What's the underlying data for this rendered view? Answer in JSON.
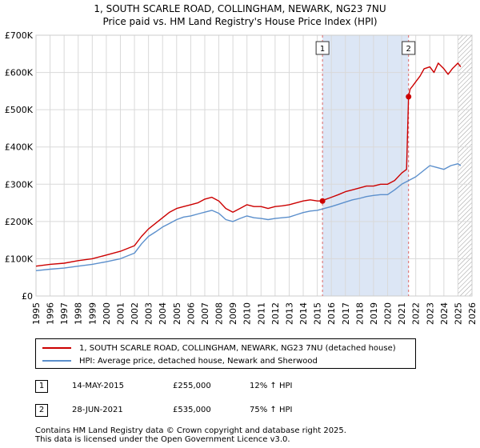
{
  "title_line1": "1, SOUTH SCARLE ROAD, COLLINGHAM, NEWARK, NG23 7NU",
  "title_line2": "Price paid vs. HM Land Registry's House Price Index (HPI)",
  "chart_data": {
    "type": "line",
    "title": "Price paid vs. HM Land Registry's House Price Index (HPI)",
    "xlabel": "",
    "ylabel": "",
    "xlim": [
      1995,
      2026
    ],
    "ylim": [
      0,
      700000
    ],
    "y_ticks": [
      0,
      100000,
      200000,
      300000,
      400000,
      500000,
      600000,
      700000
    ],
    "y_tick_labels": [
      "£0",
      "£100K",
      "£200K",
      "£300K",
      "£400K",
      "£500K",
      "£600K",
      "£700K"
    ],
    "x_ticks": [
      "1995",
      "1996",
      "1997",
      "1998",
      "1999",
      "2000",
      "2001",
      "2002",
      "2003",
      "2004",
      "2005",
      "2006",
      "2007",
      "2008",
      "2009",
      "2010",
      "2011",
      "2012",
      "2013",
      "2014",
      "2015",
      "2016",
      "2017",
      "2018",
      "2019",
      "2020",
      "2021",
      "2022",
      "2023",
      "2024",
      "2025",
      "2026"
    ],
    "grid": true,
    "shaded_region": {
      "from": 2015.37,
      "to": 2021.49,
      "color": "#dce6f5"
    },
    "hatched_region": {
      "from": 2025.0,
      "to": 2026.0
    },
    "series": [
      {
        "name": "1, SOUTH SCARLE ROAD, COLLINGHAM, NEWARK, NG23 7NU (detached house)",
        "color": "#cc0000",
        "x": [
          1995.0,
          1996.0,
          1997.0,
          1998.0,
          1999.0,
          2000.0,
          2001.0,
          2002.0,
          2002.5,
          2003.0,
          2003.5,
          2004.0,
          2004.5,
          2005.0,
          2005.5,
          2006.0,
          2006.5,
          2007.0,
          2007.5,
          2008.0,
          2008.5,
          2009.0,
          2009.5,
          2010.0,
          2010.5,
          2011.0,
          2011.5,
          2012.0,
          2012.5,
          2013.0,
          2013.5,
          2014.0,
          2014.5,
          2015.0,
          2015.37,
          2015.5,
          2016.0,
          2016.5,
          2017.0,
          2017.5,
          2018.0,
          2018.5,
          2019.0,
          2019.5,
          2020.0,
          2020.5,
          2021.0,
          2021.35,
          2021.49,
          2021.6,
          2021.8,
          2022.0,
          2022.3,
          2022.6,
          2023.0,
          2023.3,
          2023.6,
          2024.0,
          2024.3,
          2024.6,
          2025.0,
          2025.2
        ],
        "values": [
          80000,
          85000,
          88000,
          95000,
          100000,
          110000,
          120000,
          135000,
          160000,
          180000,
          195000,
          210000,
          225000,
          235000,
          240000,
          245000,
          250000,
          260000,
          265000,
          255000,
          235000,
          225000,
          235000,
          245000,
          240000,
          240000,
          235000,
          240000,
          242000,
          245000,
          250000,
          255000,
          258000,
          255000,
          255000,
          258000,
          265000,
          272000,
          280000,
          285000,
          290000,
          295000,
          295000,
          300000,
          300000,
          310000,
          330000,
          340000,
          535000,
          555000,
          565000,
          575000,
          590000,
          610000,
          615000,
          600000,
          625000,
          610000,
          595000,
          610000,
          625000,
          615000
        ]
      },
      {
        "name": "HPI: Average price, detached house, Newark and Sherwood",
        "color": "#5b8fcc",
        "x": [
          1995.0,
          1996.0,
          1997.0,
          1998.0,
          1999.0,
          2000.0,
          2001.0,
          2002.0,
          2002.5,
          2003.0,
          2003.5,
          2004.0,
          2004.5,
          2005.0,
          2005.5,
          2006.0,
          2006.5,
          2007.0,
          2007.5,
          2008.0,
          2008.5,
          2009.0,
          2009.5,
          2010.0,
          2010.5,
          2011.0,
          2011.5,
          2012.0,
          2012.5,
          2013.0,
          2013.5,
          2014.0,
          2014.5,
          2015.0,
          2015.5,
          2016.0,
          2016.5,
          2017.0,
          2017.5,
          2018.0,
          2018.5,
          2019.0,
          2019.5,
          2020.0,
          2020.5,
          2021.0,
          2021.5,
          2022.0,
          2022.5,
          2023.0,
          2023.5,
          2024.0,
          2024.5,
          2025.0,
          2025.2
        ],
        "values": [
          68000,
          72000,
          75000,
          80000,
          85000,
          92000,
          100000,
          115000,
          140000,
          160000,
          172000,
          185000,
          195000,
          205000,
          212000,
          215000,
          220000,
          225000,
          230000,
          222000,
          205000,
          200000,
          208000,
          215000,
          210000,
          208000,
          205000,
          208000,
          210000,
          212000,
          218000,
          224000,
          228000,
          230000,
          235000,
          240000,
          246000,
          252000,
          258000,
          262000,
          267000,
          270000,
          272000,
          272000,
          285000,
          300000,
          310000,
          320000,
          335000,
          350000,
          345000,
          340000,
          350000,
          355000,
          350000
        ]
      }
    ],
    "annotations": [
      {
        "label": "1",
        "x": 2015.37,
        "value": 255000
      },
      {
        "label": "2",
        "x": 2021.49,
        "value": 535000
      }
    ]
  },
  "legend": {
    "items": [
      {
        "label": "1, SOUTH SCARLE ROAD, COLLINGHAM, NEWARK, NG23 7NU (detached house)",
        "color": "#cc0000"
      },
      {
        "label": "HPI: Average price, detached house, Newark and Sherwood",
        "color": "#5b8fcc"
      }
    ]
  },
  "sales": [
    {
      "num": "1",
      "date": "14-MAY-2015",
      "price": "£255,000",
      "hpi": "12% ↑ HPI"
    },
    {
      "num": "2",
      "date": "28-JUN-2021",
      "price": "£535,000",
      "hpi": "75% ↑ HPI"
    }
  ],
  "footer": {
    "line1": "Contains HM Land Registry data © Crown copyright and database right 2025.",
    "line2": "This data is licensed under the Open Government Licence v3.0."
  }
}
